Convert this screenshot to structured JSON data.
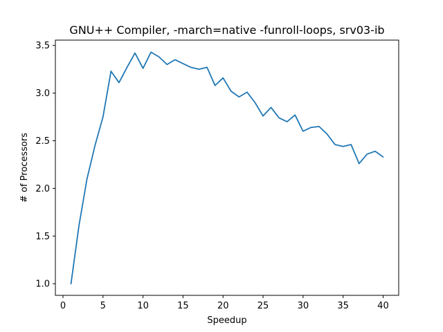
{
  "chart_data": {
    "type": "line",
    "title": "GNU++ Compiler, -march=native -funroll-loops, srv03-ib",
    "xlabel": "Speedup",
    "ylabel": "# of Processors",
    "xlim": [
      -0.95,
      41.95
    ],
    "ylim": [
      0.878,
      3.556
    ],
    "x_ticks": [
      0,
      5,
      10,
      15,
      20,
      25,
      30,
      35,
      40
    ],
    "x_tick_labels": [
      "0",
      "5",
      "10",
      "15",
      "20",
      "25",
      "30",
      "35",
      "40"
    ],
    "y_ticks": [
      1.0,
      1.5,
      2.0,
      2.5,
      3.0,
      3.5
    ],
    "y_tick_labels": [
      "1.0",
      "1.5",
      "2.0",
      "2.5",
      "3.0",
      "3.5"
    ],
    "grid": false,
    "series": [
      {
        "color": "#1f77b4",
        "x": [
          1,
          2,
          3,
          4,
          5,
          6,
          7,
          8,
          9,
          10,
          11,
          12,
          13,
          14,
          15,
          16,
          17,
          18,
          19,
          20,
          21,
          22,
          23,
          24,
          25,
          26,
          27,
          28,
          29,
          30,
          31,
          32,
          33,
          34,
          35,
          36,
          37,
          38,
          39,
          40
        ],
        "y": [
          1.0,
          1.61,
          2.1,
          2.45,
          2.75,
          3.23,
          3.11,
          3.27,
          3.42,
          3.26,
          3.43,
          3.38,
          3.3,
          3.35,
          3.31,
          3.27,
          3.25,
          3.27,
          3.08,
          3.16,
          3.02,
          2.96,
          3.01,
          2.9,
          2.76,
          2.85,
          2.74,
          2.7,
          2.77,
          2.6,
          2.64,
          2.65,
          2.57,
          2.46,
          2.44,
          2.46,
          2.26,
          2.36,
          2.39,
          2.33
        ]
      }
    ]
  }
}
